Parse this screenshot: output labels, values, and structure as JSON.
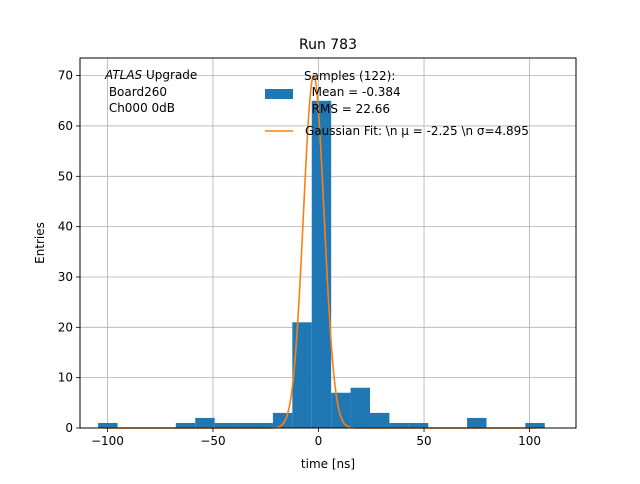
{
  "chart_data": {
    "type": "bar",
    "title": "Run 783",
    "xlabel": "time [ns]",
    "ylabel": "Entries",
    "xlim": [
      -113,
      122
    ],
    "ylim": [
      0,
      73.5
    ],
    "grid": true,
    "xticks": [
      -100,
      -50,
      0,
      50,
      100
    ],
    "yticks": [
      0,
      10,
      20,
      30,
      40,
      50,
      60,
      70
    ],
    "bin_width": 9.2,
    "bins": [
      {
        "left": -104.4,
        "count": 1
      },
      {
        "left": -95.2,
        "count": 0
      },
      {
        "left": -86.0,
        "count": 0
      },
      {
        "left": -76.8,
        "count": 0
      },
      {
        "left": -67.6,
        "count": 1
      },
      {
        "left": -58.4,
        "count": 2
      },
      {
        "left": -49.2,
        "count": 1
      },
      {
        "left": -40.0,
        "count": 1
      },
      {
        "left": -30.8,
        "count": 1
      },
      {
        "left": -21.6,
        "count": 3
      },
      {
        "left": -12.4,
        "count": 21
      },
      {
        "left": -3.2,
        "count": 65
      },
      {
        "left": 6.0,
        "count": 7
      },
      {
        "left": 15.2,
        "count": 8
      },
      {
        "left": 24.4,
        "count": 3
      },
      {
        "left": 33.6,
        "count": 1
      },
      {
        "left": 42.8,
        "count": 1
      },
      {
        "left": 52.0,
        "count": 0
      },
      {
        "left": 61.2,
        "count": 0
      },
      {
        "left": 70.4,
        "count": 2
      },
      {
        "left": 79.6,
        "count": 0
      },
      {
        "left": 88.8,
        "count": 0
      },
      {
        "left": 98.0,
        "count": 1
      }
    ],
    "fit": {
      "mu": -2.25,
      "sigma": 4.895,
      "amplitude": 70
    },
    "fit_x_range": [
      -102,
      103
    ],
    "colors": {
      "bars": "#1f77b4",
      "fit": "#ff7f0e",
      "grid": "#b0b0b0"
    },
    "annotation": {
      "line1_italic": "ATLAS",
      "line1_rest": " Upgrade",
      "line2": " Board260",
      "line3": " Ch000 0dB"
    },
    "legend": {
      "placement": "upper-right",
      "samples_lines": [
        "Samples (122):",
        "  Mean = -0.384",
        "  RMS = 22.66"
      ],
      "fit_label": "Gaussian Fit: \\n μ = -2.25 \\n σ=4.895"
    }
  }
}
